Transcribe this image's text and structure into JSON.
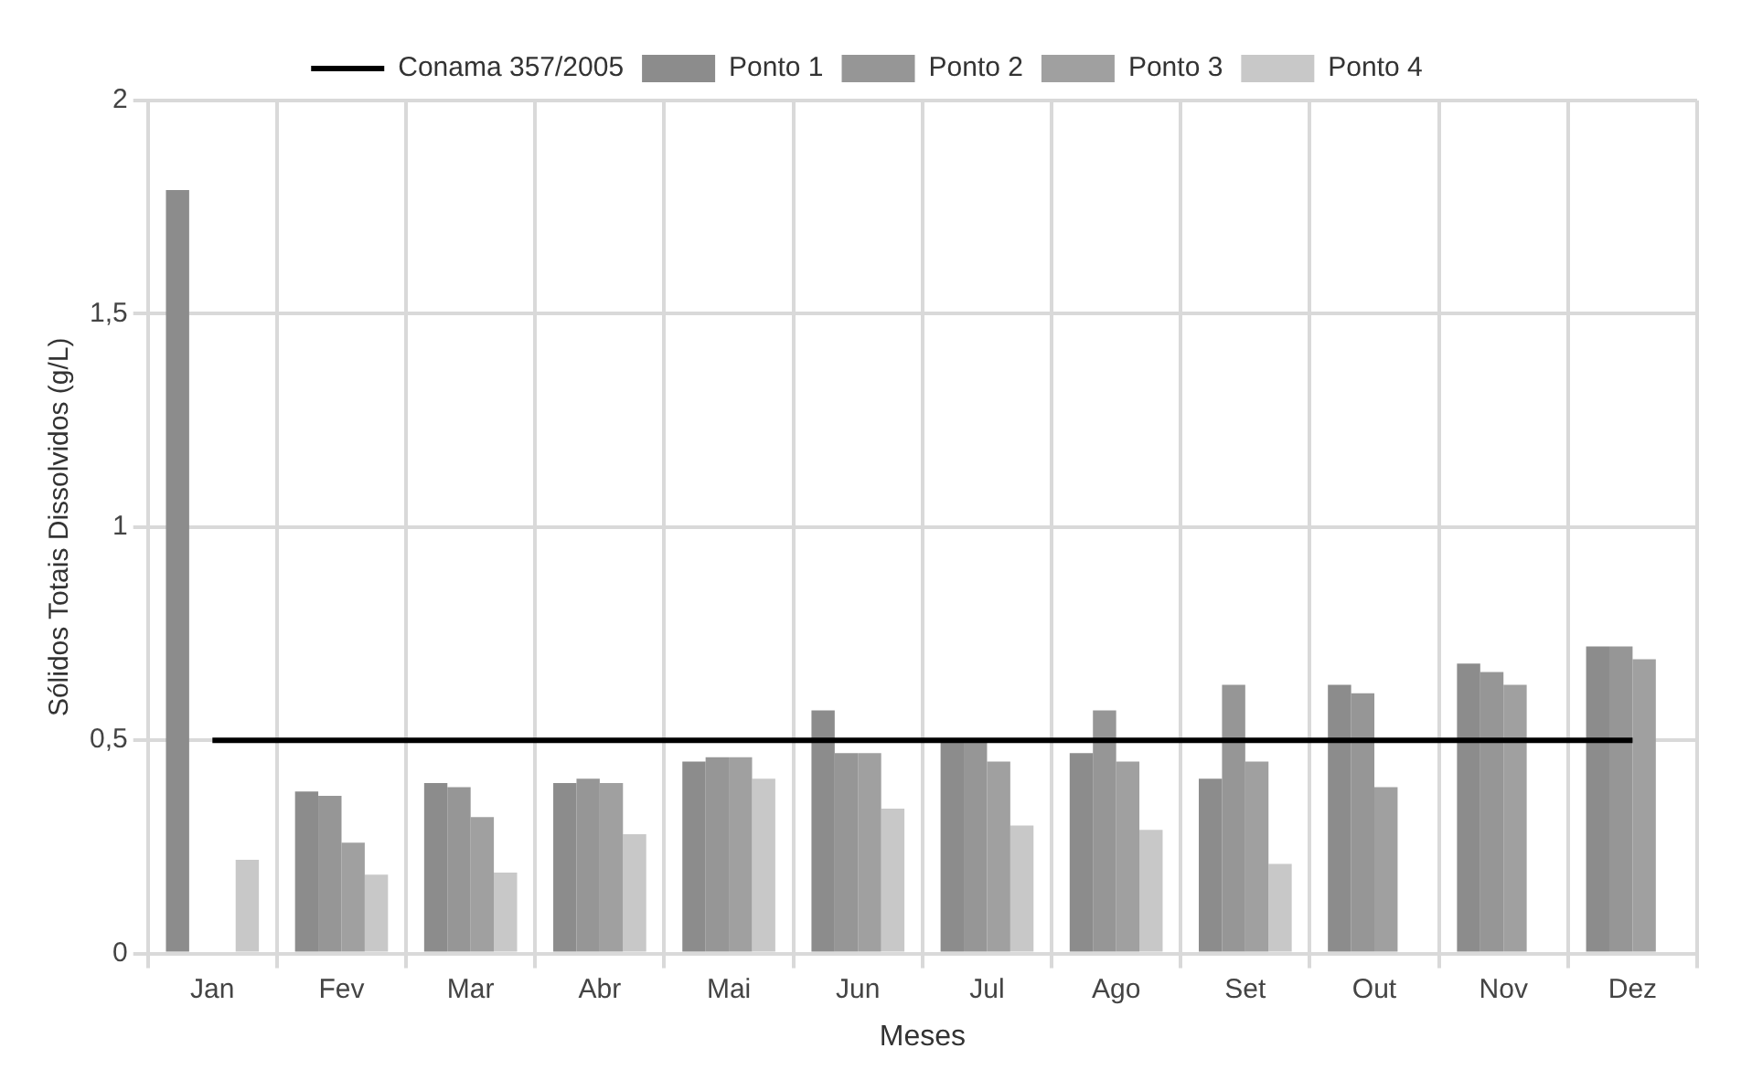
{
  "chart_data": {
    "type": "bar",
    "xlabel": "Meses",
    "ylabel": "Sólidos Totais Dissolvidos (g/L)",
    "categories": [
      "Jan",
      "Fev",
      "Mar",
      "Abr",
      "Mai",
      "Jun",
      "Jul",
      "Ago",
      "Set",
      "Out",
      "Nov",
      "Dez"
    ],
    "series": [
      {
        "name": "Ponto 1",
        "color": "#8c8c8c",
        "values": [
          1.79,
          0.38,
          0.4,
          0.4,
          0.45,
          0.57,
          0.5,
          0.47,
          0.41,
          0.63,
          0.68,
          0.72
        ]
      },
      {
        "name": "Ponto 2",
        "color": "#969696",
        "values": [
          null,
          0.37,
          0.39,
          0.41,
          0.46,
          0.47,
          0.5,
          0.57,
          0.63,
          0.61,
          0.66,
          0.72
        ]
      },
      {
        "name": "Ponto 3",
        "color": "#a0a0a0",
        "values": [
          null,
          0.26,
          0.32,
          0.4,
          0.46,
          0.47,
          0.45,
          0.45,
          0.45,
          0.39,
          0.63,
          0.69
        ]
      },
      {
        "name": "Ponto 4",
        "color": "#c8c8c8",
        "values": [
          0.22,
          0.185,
          0.19,
          0.28,
          0.41,
          0.34,
          0.3,
          0.29,
          0.21,
          null,
          null,
          null
        ]
      },
      {
        "name": "Conama 357/2005",
        "type": "line",
        "color": "#000000",
        "values": [
          0.5,
          0.5,
          0.5,
          0.5,
          0.5,
          0.5,
          0.5,
          0.5,
          0.5,
          0.5,
          0.5,
          0.5
        ]
      }
    ],
    "ylim": [
      0,
      2
    ],
    "yticks": [
      0,
      {
        "value": 0.5,
        "label": "0,5"
      },
      1,
      {
        "value": 1.5,
        "label": "1,5"
      },
      2
    ],
    "grid": true,
    "legend": "top",
    "marker": "none"
  }
}
